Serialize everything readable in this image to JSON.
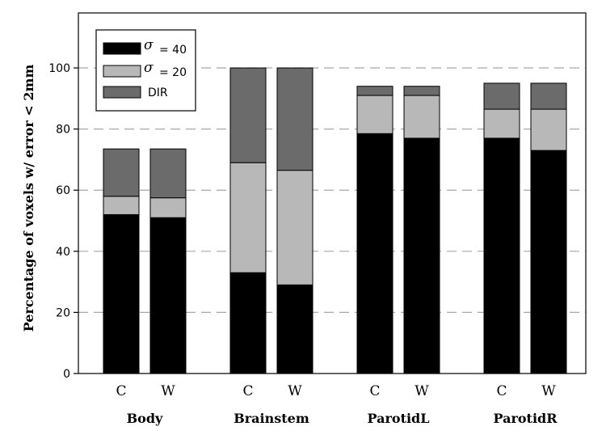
{
  "chart_data": {
    "type": "bar",
    "stacked": true,
    "ylabel": "Percentage of voxels w/ error < 2mm",
    "ylim": [
      0,
      118
    ],
    "yticks": [
      0,
      20,
      40,
      60,
      80,
      100
    ],
    "grid": "horizontal dashed",
    "legend_position": "top-left",
    "groups": [
      {
        "label": "Body",
        "bars": [
          {
            "label": "C",
            "sigma40": 52,
            "sigma20": 58,
            "dir": 73.5
          },
          {
            "label": "W",
            "sigma40": 51,
            "sigma20": 57.5,
            "dir": 73.5
          }
        ]
      },
      {
        "label": "Brainstem",
        "bars": [
          {
            "label": "C",
            "sigma40": 33,
            "sigma20": 69,
            "dir": 100
          },
          {
            "label": "W",
            "sigma40": 29,
            "sigma20": 66.5,
            "dir": 100
          }
        ]
      },
      {
        "label": "ParotidL",
        "bars": [
          {
            "label": "C",
            "sigma40": 78.5,
            "sigma20": 91,
            "dir": 94
          },
          {
            "label": "W",
            "sigma40": 77,
            "sigma20": 91,
            "dir": 94
          }
        ]
      },
      {
        "label": "ParotidR",
        "bars": [
          {
            "label": "C",
            "sigma40": 77,
            "sigma20": 86.5,
            "dir": 95
          },
          {
            "label": "W",
            "sigma40": 73,
            "sigma20": 86.5,
            "dir": 95
          }
        ]
      }
    ],
    "series": [
      {
        "key": "sigma40",
        "symbol": "σ",
        "label": "= 40",
        "color": "#000000"
      },
      {
        "key": "sigma20",
        "symbol": "σ",
        "label": "= 20",
        "color": "#b8b8b8"
      },
      {
        "key": "dir",
        "symbol": "",
        "label": "DIR",
        "color": "#6b6b6b"
      }
    ]
  }
}
